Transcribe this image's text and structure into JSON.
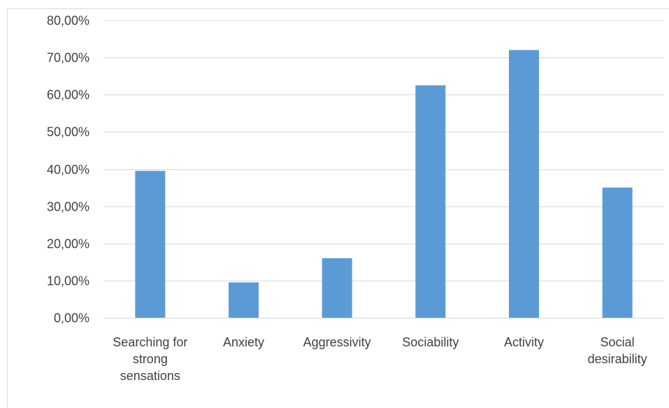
{
  "chart_data": {
    "type": "bar",
    "categories": [
      [
        "Searching for",
        "strong",
        "sensations"
      ],
      [
        "Anxiety"
      ],
      [
        "Aggressivity"
      ],
      [
        "Sociability"
      ],
      [
        "Activity"
      ],
      [
        "Social",
        "desirability"
      ]
    ],
    "values": [
      39.5,
      9.5,
      16.0,
      62.5,
      72.0,
      35.0
    ],
    "ylim": [
      0,
      80
    ],
    "yticks": [
      0,
      10,
      20,
      30,
      40,
      50,
      60,
      70,
      80
    ],
    "ytick_labels": [
      "0,00%",
      "10,00%",
      "20,00%",
      "30,00%",
      "40,00%",
      "50,00%",
      "60,00%",
      "70,00%",
      "80,00%"
    ],
    "grid": true,
    "bar_color": "#5b9bd5",
    "grid_color": "#d9d9d9",
    "title": "",
    "xlabel": "",
    "ylabel": ""
  }
}
